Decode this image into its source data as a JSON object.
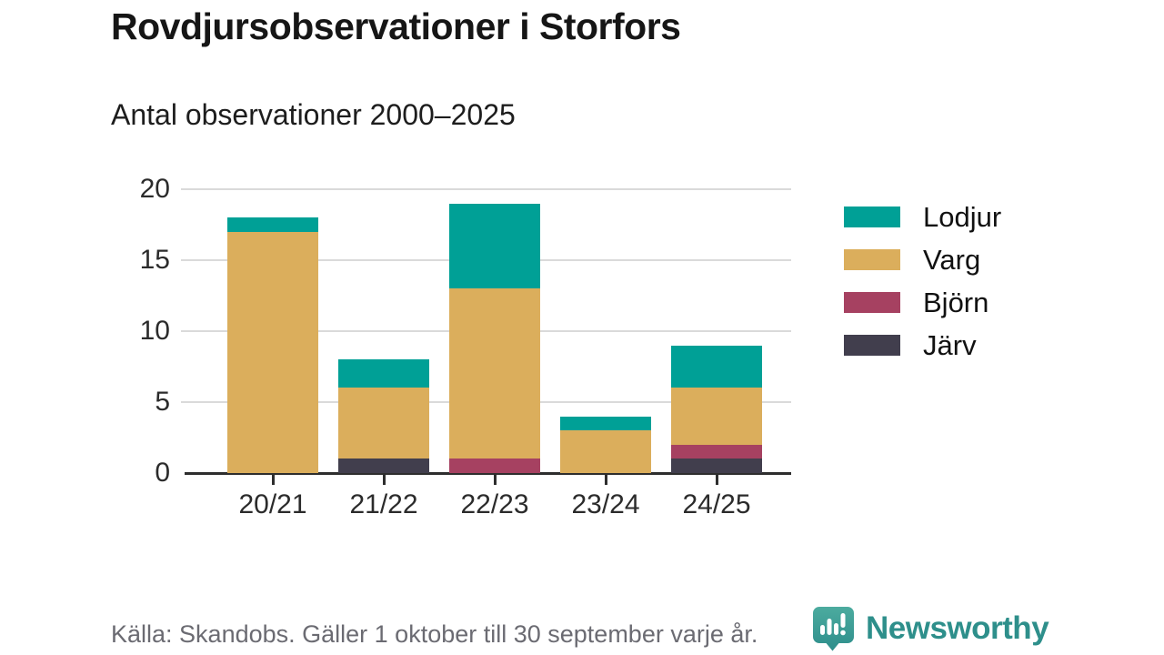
{
  "header": {
    "title": "Rovdjursobservationer i Storfors",
    "subtitle": "Antal observationer 2000–2025"
  },
  "chart_data": {
    "type": "bar",
    "stacked": true,
    "title": "Rovdjursobservationer i Storfors",
    "subtitle": "Antal observationer 2000–2025",
    "categories": [
      "20/21",
      "21/22",
      "22/23",
      "23/24",
      "24/25"
    ],
    "series": [
      {
        "name": "Järv",
        "key": "jarv",
        "color": "#413e4d",
        "values": [
          0,
          1,
          0,
          0,
          1
        ]
      },
      {
        "name": "Björn",
        "key": "bjorn",
        "color": "#a64161",
        "values": [
          0,
          0,
          1,
          0,
          1
        ]
      },
      {
        "name": "Varg",
        "key": "varg",
        "color": "#dbae5c",
        "values": [
          17,
          5,
          12,
          3,
          4
        ]
      },
      {
        "name": "Lodjur",
        "key": "lodjur",
        "color": "#00a096",
        "values": [
          1,
          2,
          6,
          1,
          3
        ]
      }
    ],
    "totals": [
      18,
      8,
      19,
      4,
      9
    ],
    "stack_order_bottom_to_top": [
      "Järv",
      "Björn",
      "Varg",
      "Lodjur"
    ],
    "legend_order": [
      "Lodjur",
      "Varg",
      "Björn",
      "Järv"
    ],
    "legend_position": "right",
    "y_ticks": [
      0,
      5,
      10,
      15,
      20
    ],
    "ylim": [
      0,
      20
    ],
    "xlabel": "",
    "ylabel": "",
    "grid": true
  },
  "footer": {
    "source": "Källa: Skandobs. Gäller 1 oktober till 30 september varje år.",
    "brand": "Newsworthy"
  },
  "colors": {
    "lodjur": "#00a096",
    "varg": "#dbae5c",
    "bjorn": "#a64161",
    "jarv": "#413e4d",
    "gridline": "#dadada",
    "axis": "#2e2e2e",
    "text": "#161616",
    "muted_text": "#6b6b72",
    "brand_teal": "#2e8f8b"
  }
}
